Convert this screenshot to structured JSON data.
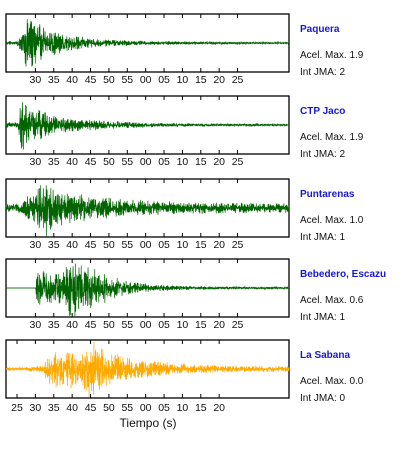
{
  "chart_data": {
    "type": "line",
    "xlabel": "Tiempo (s)",
    "tick_labels": [
      "30",
      "35",
      "40",
      "45",
      "50",
      "55",
      "00",
      "05",
      "10",
      "15",
      "20",
      "25"
    ],
    "bottom_tick_labels": [
      "25",
      "30",
      "35",
      "40",
      "45",
      "50",
      "55",
      "00",
      "05",
      "10",
      "15",
      "20"
    ],
    "panels": [
      {
        "station": "Paquera",
        "acel_label": "Acel. Max.",
        "acel_value": "1.9",
        "int_label": "Int JMA:",
        "int_value": "2",
        "color": "#006400",
        "envelope": [
          [
            0,
            0.05
          ],
          [
            2,
            0.5
          ],
          [
            3,
            0.95
          ],
          [
            5,
            0.7
          ],
          [
            8,
            0.45
          ],
          [
            12,
            0.28
          ],
          [
            18,
            0.18
          ],
          [
            25,
            0.1
          ],
          [
            35,
            0.06
          ],
          [
            50,
            0.04
          ],
          [
            65,
            0.03
          ],
          [
            75,
            0.03
          ]
        ],
        "show_ticks": true
      },
      {
        "station": "CTP Jaco",
        "acel_label": "Acel. Max.",
        "acel_value": "1.9",
        "int_label": "Int JMA:",
        "int_value": "2",
        "color": "#006400",
        "envelope": [
          [
            0,
            0.08
          ],
          [
            1,
            0.9
          ],
          [
            3,
            0.7
          ],
          [
            6,
            0.45
          ],
          [
            10,
            0.28
          ],
          [
            16,
            0.18
          ],
          [
            25,
            0.12
          ],
          [
            35,
            0.07
          ],
          [
            50,
            0.04
          ],
          [
            75,
            0.03
          ]
        ],
        "show_ticks": true
      },
      {
        "station": "Puntarenas",
        "acel_label": "Acel. Max.",
        "acel_value": "1.0",
        "int_label": "Int JMA:",
        "int_value": "1",
        "color": "#006400",
        "envelope": [
          [
            0,
            0.12
          ],
          [
            3,
            0.35
          ],
          [
            6,
            0.65
          ],
          [
            8,
            0.85
          ],
          [
            10,
            0.6
          ],
          [
            14,
            0.45
          ],
          [
            20,
            0.35
          ],
          [
            30,
            0.25
          ],
          [
            45,
            0.18
          ],
          [
            60,
            0.15
          ],
          [
            75,
            0.14
          ]
        ],
        "show_ticks": true
      },
      {
        "station": "Bebedero, Escazu",
        "acel_label": "Acel. Max.",
        "acel_value": "0.6",
        "int_label": "Int JMA:",
        "int_value": "1",
        "color": "#006400",
        "envelope": [
          [
            0,
            0.0
          ],
          [
            5,
            0.0
          ],
          [
            5.5,
            0.55
          ],
          [
            8,
            0.45
          ],
          [
            12,
            0.55
          ],
          [
            15,
            0.9
          ],
          [
            18,
            0.75
          ],
          [
            22,
            0.5
          ],
          [
            26,
            0.35
          ],
          [
            30,
            0.2
          ],
          [
            38,
            0.1
          ],
          [
            48,
            0.05
          ],
          [
            75,
            0.03
          ]
        ],
        "show_ticks": true
      },
      {
        "station": "La Sabana",
        "acel_label": "Acel. Max.",
        "acel_value": "0.0",
        "int_label": "Int JMA:",
        "int_value": "0",
        "color": "#ffaa00",
        "envelope": [
          [
            0,
            0.05
          ],
          [
            7,
            0.12
          ],
          [
            9,
            0.5
          ],
          [
            12,
            0.55
          ],
          [
            15,
            0.6
          ],
          [
            17,
            0.45
          ],
          [
            20,
            0.95
          ],
          [
            22,
            0.7
          ],
          [
            25,
            0.5
          ],
          [
            30,
            0.35
          ],
          [
            38,
            0.22
          ],
          [
            48,
            0.14
          ],
          [
            60,
            0.1
          ],
          [
            75,
            0.08
          ]
        ],
        "show_ticks": false
      }
    ]
  }
}
